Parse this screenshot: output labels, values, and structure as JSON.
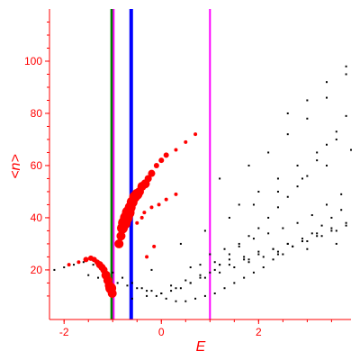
{
  "chart_data": {
    "type": "scatter",
    "xlabel": "E",
    "ylabel": "<n>",
    "xlim": [
      -2.3,
      3.9
    ],
    "ylim": [
      1,
      120
    ],
    "x_ticks": [
      -2,
      0,
      2
    ],
    "x_tick_labels": [
      "-2",
      "0",
      "2"
    ],
    "y_ticks": [
      20,
      40,
      60,
      80,
      100
    ],
    "y_tick_labels": [
      "20",
      "40",
      "60",
      "80",
      "100"
    ],
    "grid": false,
    "legend": "none",
    "colors": {
      "axis": "#ff0000",
      "black_points": "#000000",
      "red_points": "#ff0000",
      "green_line": "#008000",
      "blue_line": "#0000ff",
      "magenta_line": "#ff00ff"
    },
    "vertical_lines": [
      {
        "x": -1.02,
        "color": "#008000",
        "width": 3
      },
      {
        "x": -0.98,
        "color": "#ff00ff",
        "width": 2
      },
      {
        "x": -0.62,
        "color": "#0000ff",
        "width": 4
      },
      {
        "x": 1.0,
        "color": "#ff00ff",
        "width": 2
      }
    ],
    "red_series": {
      "x": [
        -1.55,
        -1.45,
        -1.38,
        -1.32,
        -1.27,
        -1.22,
        -1.18,
        -1.14,
        -1.1,
        -1.07,
        -1.04,
        -1.01,
        -0.87,
        -0.83,
        -0.8,
        -0.76,
        -0.72,
        -0.68,
        -0.64,
        -0.6,
        -0.55,
        -0.5,
        -0.45,
        -0.4,
        -0.33,
        -0.27,
        -0.2,
        -0.1,
        0.0,
        0.1,
        0.3,
        0.5,
        0.7,
        -0.5,
        -0.4,
        -0.35,
        -0.2,
        -0.05,
        0.1,
        0.3,
        -0.3,
        -0.15,
        -1.7,
        -1.9
      ],
      "y": [
        24,
        24.5,
        24,
        23,
        22,
        21,
        20,
        18,
        16,
        14,
        13,
        11,
        30,
        33,
        36,
        38,
        40,
        42,
        44,
        46,
        48,
        49,
        50,
        52,
        53,
        55,
        57,
        60,
        62,
        64,
        66,
        69,
        72,
        38,
        40,
        42,
        44,
        45,
        47,
        49,
        25,
        29,
        23,
        22
      ],
      "size": [
        3,
        3,
        3,
        3,
        4,
        4,
        4,
        5,
        5,
        5,
        6,
        5,
        5,
        5,
        6,
        7,
        7,
        7,
        6,
        6,
        6,
        6,
        5,
        5,
        5,
        4,
        4,
        3,
        3,
        3,
        2,
        2,
        2,
        2,
        2,
        2,
        2,
        2,
        2,
        2,
        2,
        2,
        2,
        2
      ]
    },
    "black_series": {
      "x": [
        -2.2,
        -2.0,
        -1.8,
        -1.6,
        -1.4,
        -1.2,
        -1.0,
        -0.8,
        -0.6,
        -0.4,
        -0.2,
        0.0,
        0.2,
        0.4,
        0.6,
        0.8,
        1.0,
        1.2,
        1.4,
        1.6,
        1.8,
        2.0,
        2.2,
        2.4,
        2.6,
        2.8,
        3.0,
        3.2,
        3.4,
        3.6,
        3.8,
        -1.5,
        -1.3,
        -1.1,
        -0.9,
        -0.7,
        -0.5,
        -0.3,
        -0.1,
        0.1,
        0.3,
        0.5,
        0.7,
        0.9,
        1.1,
        1.3,
        1.5,
        1.7,
        1.9,
        2.1,
        2.3,
        2.5,
        2.7,
        2.9,
        3.1,
        3.3,
        3.5,
        3.7,
        1.0,
        1.3,
        1.6,
        1.9,
        2.2,
        2.5,
        2.8,
        3.1,
        3.4,
        3.7,
        0.8,
        1.1,
        1.4,
        1.7,
        2.0,
        2.3,
        2.6,
        2.9,
        3.2,
        3.5,
        3.8,
        0.2,
        0.5,
        0.8,
        1.1,
        1.4,
        1.7,
        2.0,
        2.3,
        2.6,
        2.9,
        3.2,
        3.5,
        3.8,
        -0.6,
        -0.3,
        0.0,
        0.3,
        0.6,
        0.9,
        1.2,
        1.5,
        1.8,
        2.1,
        2.4,
        2.7,
        3.0,
        3.3,
        3.6,
        1.6,
        2.0,
        2.4,
        2.8,
        3.2,
        3.6,
        2.6,
        3.0,
        3.4,
        3.8,
        1.2,
        1.8,
        2.2,
        2.6,
        3.0,
        3.4,
        3.8,
        0.4,
        0.9,
        1.4,
        1.9,
        2.4,
        2.9,
        3.4,
        3.9,
        -0.2,
        0.6,
        1.2,
        1.8,
        2.4,
        3.0,
        3.6
      ],
      "y": [
        20,
        21,
        22,
        23,
        22,
        21,
        19,
        17,
        15,
        13,
        12,
        11,
        12,
        13,
        15,
        17,
        19,
        22,
        26,
        29,
        33,
        36,
        40,
        44,
        48,
        52,
        56,
        62,
        68,
        73,
        79,
        18,
        17,
        16,
        15,
        14,
        13,
        12,
        10,
        9,
        8,
        8,
        9,
        10,
        11,
        13,
        15,
        17,
        19,
        21,
        24,
        26,
        29,
        31,
        34,
        37,
        40,
        43,
        26,
        28,
        30,
        32,
        34,
        36,
        38,
        41,
        45,
        49,
        22,
        23,
        24,
        25,
        27,
        28,
        30,
        31,
        33,
        35,
        37,
        14,
        16,
        18,
        20,
        22,
        24,
        26,
        28,
        30,
        32,
        34,
        36,
        38,
        9,
        10,
        11,
        13,
        15,
        17,
        19,
        21,
        23,
        25,
        27,
        29,
        31,
        33,
        35,
        45,
        50,
        55,
        60,
        65,
        70,
        80,
        85,
        92,
        98,
        55,
        60,
        65,
        72,
        78,
        86,
        95,
        30,
        35,
        40,
        45,
        50,
        55,
        60,
        66,
        20,
        21,
        22,
        24,
        26,
        28,
        30
      ]
    }
  }
}
